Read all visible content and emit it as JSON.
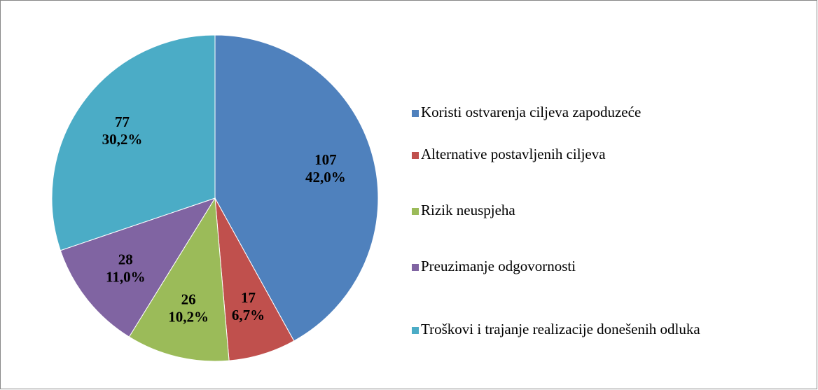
{
  "chart_data": {
    "type": "pie",
    "categories": [
      "Koristi ostvarenja ciljeva zapoduzeće",
      "Alternative postavljenih ciljeva",
      "Rizik neuspjeha",
      "Preuzimanje odgovornosti",
      "Troškovi i trajanje realizacije donešenih odluka"
    ],
    "values": [
      107,
      17,
      26,
      28,
      77
    ],
    "percentages": [
      42.0,
      6.7,
      10.2,
      11.0,
      30.2
    ],
    "percentage_labels": [
      "42,0%",
      "6,7%",
      "10,2%",
      "11,0%",
      "30,2%"
    ],
    "colors": [
      "#4f81bd",
      "#c0504d",
      "#9bbb59",
      "#8064a2",
      "#4bacc6"
    ],
    "legend": "right"
  }
}
